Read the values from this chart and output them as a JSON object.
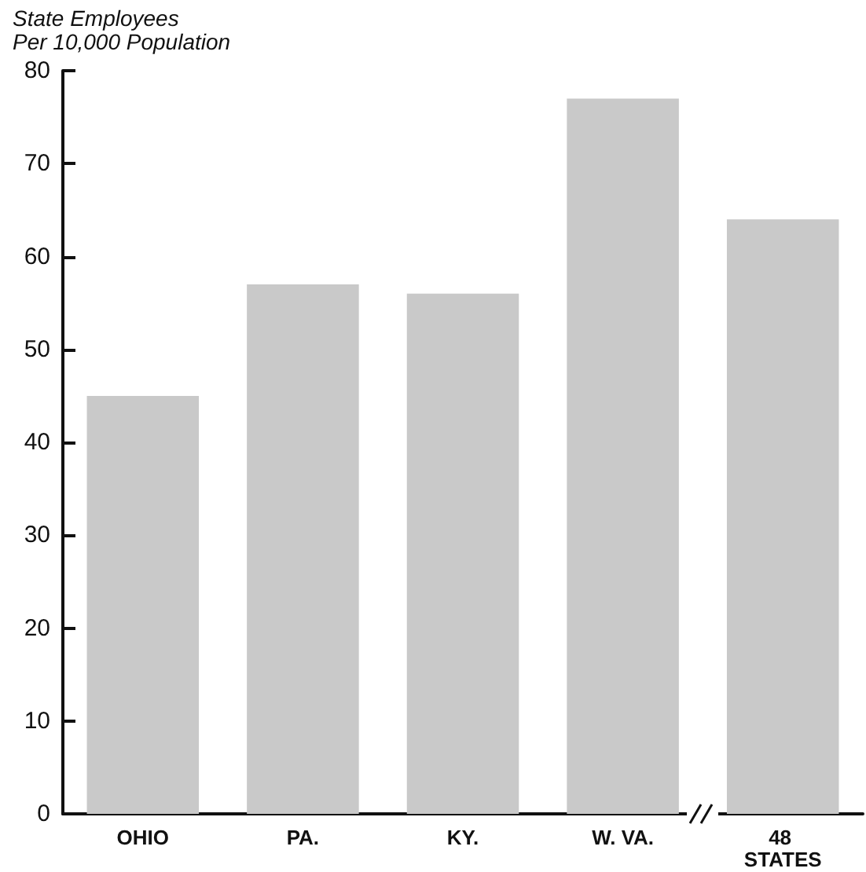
{
  "chart_data": {
    "type": "bar",
    "ylabel": "State Employees\nPer 10,000 Population",
    "categories": [
      "OHIO",
      "PA.",
      "KY.",
      "W. VA.",
      "48 STATES"
    ],
    "values": [
      45,
      57,
      56,
      77,
      64
    ],
    "color": "#c9c9c9",
    "ylim": [
      0,
      80
    ],
    "yticks": [
      0,
      10,
      20,
      30,
      40,
      50,
      60,
      70,
      80
    ],
    "grid": false
  }
}
